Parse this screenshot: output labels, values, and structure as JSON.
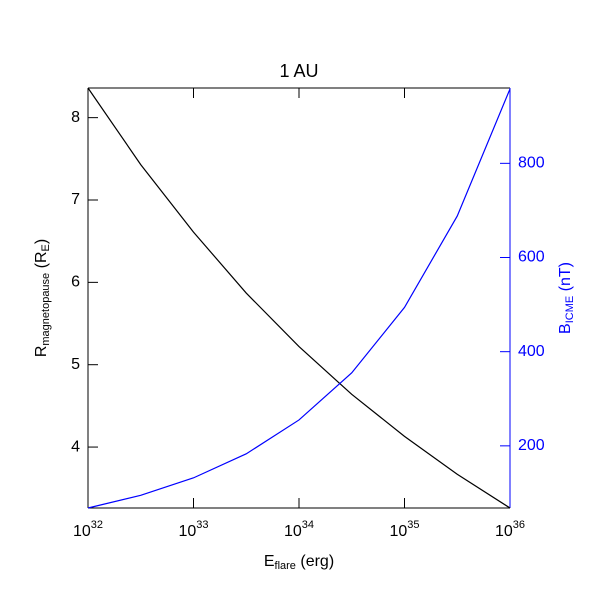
{
  "chart_data": {
    "type": "line",
    "title": "1 AU",
    "x_label": [
      "E",
      "flare",
      " (erg)"
    ],
    "y_label": [
      "R",
      "magnetopause",
      " (R",
      "E",
      ")"
    ],
    "y2_label": [
      "B",
      "ICME",
      " (nT)"
    ],
    "x": [
      1e+32,
      3.16e+32,
      1e+33,
      3.16e+33,
      1e+34,
      3.16e+34,
      1e+35,
      3.16e+35,
      1e+36
    ],
    "x_log": true,
    "xlim": [
      1e+32,
      1e+36
    ],
    "xticks": [
      {
        "value": 1e+32,
        "label": [
          "10",
          "32"
        ]
      },
      {
        "value": 1e+33,
        "label": [
          "10",
          "33"
        ]
      },
      {
        "value": 1e+34,
        "label": [
          "10",
          "34"
        ]
      },
      {
        "value": 1e+35,
        "label": [
          "10",
          "35"
        ]
      },
      {
        "value": 1e+36,
        "label": [
          "10",
          "36"
        ]
      }
    ],
    "ylim": [
      3.26,
      8.36
    ],
    "yticks": [
      4,
      5,
      6,
      7,
      8
    ],
    "y2lim": [
      68,
      960
    ],
    "y2ticks": [
      200,
      400,
      600,
      800
    ],
    "y2_color": "#0000ff",
    "series": [
      {
        "color": "#000000",
        "values": [
          8.36,
          7.43,
          6.61,
          5.87,
          5.22,
          4.64,
          4.13,
          3.67,
          3.26
        ]
      },
      {
        "color": "#0000ff",
        "axis": "y2",
        "values": [
          68,
          95,
          132,
          183,
          255,
          355,
          494,
          688,
          958
        ]
      }
    ]
  }
}
